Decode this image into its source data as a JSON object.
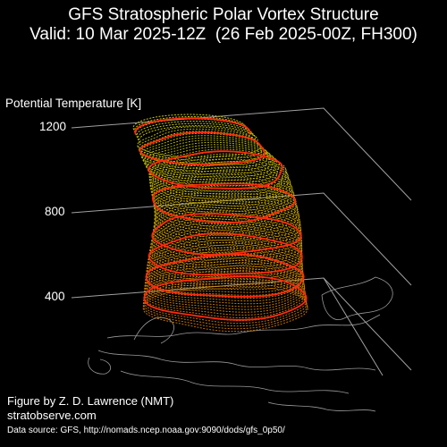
{
  "title": {
    "line1": "GFS Stratospheric Polar Vortex Structure",
    "line2": "Valid: 10 Mar 2025-12Z  (26 Feb 2025-00Z, FH300)"
  },
  "credits": {
    "figure_by": "Figure by Z. D. Lawrence (NMT)",
    "site": "stratobserve.com",
    "data_source": "Data source: GFS, http://nomads.ncep.noaa.gov:9090/dods/gfs_0p50/"
  },
  "chart_data": {
    "type": "3d-surface",
    "zlabel": "Potential Temperature [K]",
    "z_ticks": [
      400,
      800,
      1200
    ],
    "zlim": [
      300,
      1200
    ],
    "vortex_top_K": 1200,
    "vortex_bottom_K": 350,
    "highlight_levels_K": [
      400,
      500,
      600,
      700,
      850,
      1000,
      1100
    ],
    "colors": {
      "background": "#000000",
      "surface_low": "#d97a00",
      "surface_high": "#c8c800",
      "highlight": "#ff2a10",
      "grid": "#a0a0a0",
      "coastline": "#9a9a9a"
    }
  }
}
